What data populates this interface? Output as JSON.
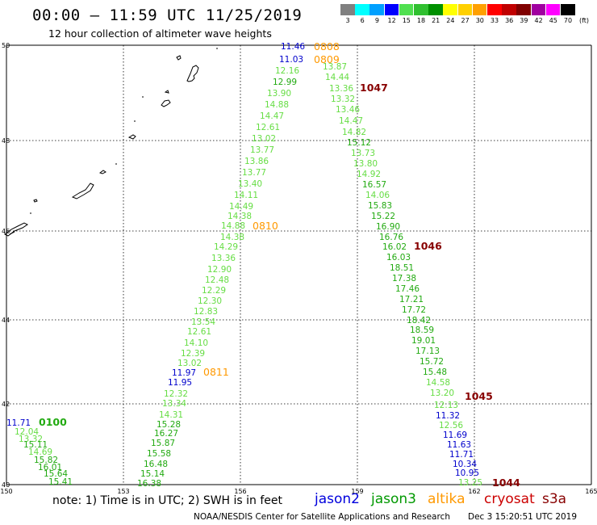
{
  "header": {
    "title": "00:00 – 11:59 UTC 11/25/2019",
    "subtitle": "12 hour collection of altimeter wave heights"
  },
  "legend": {
    "unit": "(ft)",
    "items": [
      {
        "color": "#808080",
        "label": "3"
      },
      {
        "color": "#00ffff",
        "label": "6"
      },
      {
        "color": "#00a0ff",
        "label": "9"
      },
      {
        "color": "#0000ff",
        "label": "12"
      },
      {
        "color": "#50e050",
        "label": "15"
      },
      {
        "color": "#30c030",
        "label": "18"
      },
      {
        "color": "#009000",
        "label": "21"
      },
      {
        "color": "#ffff00",
        "label": "24"
      },
      {
        "color": "#ffd000",
        "label": "27"
      },
      {
        "color": "#ffa000",
        "label": "30"
      },
      {
        "color": "#ff0000",
        "label": "33"
      },
      {
        "color": "#c00000",
        "label": "36"
      },
      {
        "color": "#800000",
        "label": "39"
      },
      {
        "color": "#a000a0",
        "label": "42"
      },
      {
        "color": "#ff00ff",
        "label": "45"
      },
      {
        "color": "#000000",
        "label": "70"
      }
    ]
  },
  "colors": {
    "light_green": "#66dd44",
    "green": "#22aa11",
    "blue": "#0000cc",
    "orange": "#ff9900",
    "dark_red": "#880000"
  },
  "axes": {
    "lon_labels": [
      "150",
      "153",
      "156",
      "159",
      "162",
      "165"
    ],
    "lat_labels": [
      "50",
      "48",
      "46",
      "44",
      "42",
      "40"
    ]
  },
  "tracks": [
    {
      "time": "0808",
      "color": "orange"
    },
    {
      "time": "0809",
      "color": "orange"
    },
    {
      "time": "0810",
      "color": "orange"
    },
    {
      "time": "0811",
      "color": "orange"
    },
    {
      "time": "0100",
      "color": "green"
    },
    {
      "time": "1047",
      "color": "dark_red"
    },
    {
      "time": "1046",
      "color": "dark_red"
    },
    {
      "time": "1045",
      "color": "dark_red"
    },
    {
      "time": "1044",
      "color": "dark_red"
    }
  ],
  "observations": [
    {
      "v": "11.46",
      "c": "blue"
    },
    {
      "v": "11.03",
      "c": "blue"
    },
    {
      "v": "12.16",
      "c": "light_green"
    },
    {
      "v": "12.99",
      "c": "green"
    },
    {
      "v": "13.90",
      "c": "light_green"
    },
    {
      "v": "14.88",
      "c": "light_green"
    },
    {
      "v": "14.47",
      "c": "light_green"
    },
    {
      "v": "12.61",
      "c": "light_green"
    },
    {
      "v": "13.02",
      "c": "light_green"
    },
    {
      "v": "13.77",
      "c": "light_green"
    },
    {
      "v": "13.86",
      "c": "light_green"
    },
    {
      "v": "13.77",
      "c": "light_green"
    },
    {
      "v": "13.40",
      "c": "light_green"
    },
    {
      "v": "14.11",
      "c": "light_green"
    },
    {
      "v": "14.49",
      "c": "light_green"
    },
    {
      "v": "14.38",
      "c": "light_green"
    },
    {
      "v": "14.88",
      "c": "light_green"
    },
    {
      "v": "14.38",
      "c": "light_green"
    },
    {
      "v": "14.29",
      "c": "light_green"
    },
    {
      "v": "13.36",
      "c": "light_green"
    },
    {
      "v": "12.90",
      "c": "light_green"
    },
    {
      "v": "12.48",
      "c": "light_green"
    },
    {
      "v": "12.29",
      "c": "light_green"
    },
    {
      "v": "12.30",
      "c": "light_green"
    },
    {
      "v": "12.83",
      "c": "light_green"
    },
    {
      "v": "13.54",
      "c": "light_green"
    },
    {
      "v": "12.61",
      "c": "light_green"
    },
    {
      "v": "14.10",
      "c": "light_green"
    },
    {
      "v": "12.39",
      "c": "light_green"
    },
    {
      "v": "13.02",
      "c": "light_green"
    },
    {
      "v": "11.97",
      "c": "blue"
    },
    {
      "v": "11.95",
      "c": "blue"
    },
    {
      "v": "12.32",
      "c": "light_green"
    },
    {
      "v": "13.34",
      "c": "light_green"
    },
    {
      "v": "14.31",
      "c": "light_green"
    },
    {
      "v": "15.28",
      "c": "green"
    },
    {
      "v": "16.27",
      "c": "green"
    },
    {
      "v": "15.87",
      "c": "green"
    },
    {
      "v": "15.58",
      "c": "green"
    },
    {
      "v": "16.48",
      "c": "green"
    },
    {
      "v": "15.14",
      "c": "green"
    },
    {
      "v": "16.38",
      "c": "green"
    },
    {
      "v": "13.87",
      "c": "light_green"
    },
    {
      "v": "14.44",
      "c": "light_green"
    },
    {
      "v": "13.36",
      "c": "light_green"
    },
    {
      "v": "13.32",
      "c": "light_green"
    },
    {
      "v": "13.46",
      "c": "light_green"
    },
    {
      "v": "14.47",
      "c": "light_green"
    },
    {
      "v": "14.82",
      "c": "light_green"
    },
    {
      "v": "15.12",
      "c": "green"
    },
    {
      "v": "13.73",
      "c": "light_green"
    },
    {
      "v": "13.80",
      "c": "light_green"
    },
    {
      "v": "14.92",
      "c": "light_green"
    },
    {
      "v": "16.57",
      "c": "green"
    },
    {
      "v": "14.06",
      "c": "light_green"
    },
    {
      "v": "15.83",
      "c": "green"
    },
    {
      "v": "15.22",
      "c": "green"
    },
    {
      "v": "16.90",
      "c": "green"
    },
    {
      "v": "16.76",
      "c": "green"
    },
    {
      "v": "16.02",
      "c": "green"
    },
    {
      "v": "16.03",
      "c": "green"
    },
    {
      "v": "18.51",
      "c": "green"
    },
    {
      "v": "17.38",
      "c": "green"
    },
    {
      "v": "17.46",
      "c": "green"
    },
    {
      "v": "17.21",
      "c": "green"
    },
    {
      "v": "17.72",
      "c": "green"
    },
    {
      "v": "18.42",
      "c": "green"
    },
    {
      "v": "18.59",
      "c": "green"
    },
    {
      "v": "19.01",
      "c": "green"
    },
    {
      "v": "17.13",
      "c": "green"
    },
    {
      "v": "15.72",
      "c": "green"
    },
    {
      "v": "15.48",
      "c": "green"
    },
    {
      "v": "14.58",
      "c": "light_green"
    },
    {
      "v": "13.20",
      "c": "light_green"
    },
    {
      "v": "12.13",
      "c": "light_green"
    },
    {
      "v": "11.32",
      "c": "blue"
    },
    {
      "v": "12.56",
      "c": "light_green"
    },
    {
      "v": "11.69",
      "c": "blue"
    },
    {
      "v": "11.63",
      "c": "blue"
    },
    {
      "v": "11.71",
      "c": "blue"
    },
    {
      "v": "10.34",
      "c": "blue"
    },
    {
      "v": "10.95",
      "c": "blue"
    },
    {
      "v": "13.25",
      "c": "light_green"
    },
    {
      "v": "11.71",
      "c": "blue"
    },
    {
      "v": "12.04",
      "c": "light_green"
    },
    {
      "v": "13.32",
      "c": "light_green"
    },
    {
      "v": "15.11",
      "c": "green"
    },
    {
      "v": "14.69",
      "c": "light_green"
    },
    {
      "v": "15.82",
      "c": "green"
    },
    {
      "v": "16.01",
      "c": "green"
    },
    {
      "v": "15.64",
      "c": "green"
    },
    {
      "v": "15.41",
      "c": "green"
    },
    {
      "v": "14.43",
      "c": "light_green"
    }
  ],
  "footer": {
    "note": "note: 1) Time is in UTC; 2) SWH is in feet",
    "satellites": [
      {
        "name": "jason2",
        "color": "#0000dd"
      },
      {
        "name": "jason3",
        "color": "#009900"
      },
      {
        "name": "altika",
        "color": "#ff9900"
      },
      {
        "name": "cryosat",
        "color": "#cc0000"
      },
      {
        "name": "s3a",
        "color": "#880000"
      }
    ],
    "credit": "NOAA/NESDIS Center for Satellite Applications and Research",
    "timestamp": "Dec  3 15:20:51 UTC 2019"
  }
}
